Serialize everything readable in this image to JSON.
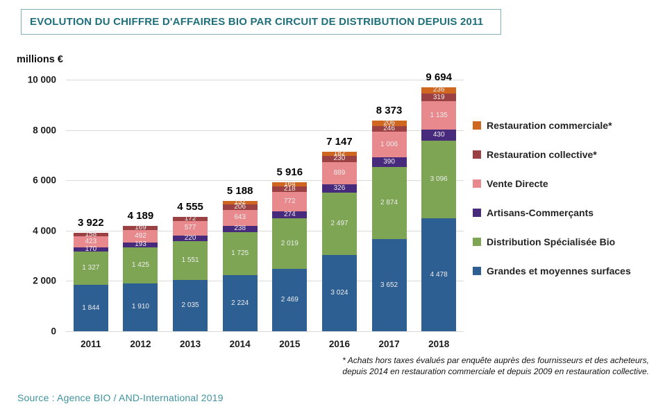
{
  "title": "EVOLUTION DU CHIFFRE D'AFFAIRES BIO PAR CIRCUIT DE DISTRIBUTION DEPUIS 2011",
  "y_axis": {
    "unit": "millions €",
    "ticks": [
      {
        "label": "0",
        "value": 0
      },
      {
        "label": "2 000",
        "value": 2000
      },
      {
        "label": "4 000",
        "value": 4000
      },
      {
        "label": "6 000",
        "value": 6000
      },
      {
        "label": "8 000",
        "value": 8000
      },
      {
        "label": "10 000",
        "value": 10000
      }
    ]
  },
  "chart_data": {
    "type": "bar",
    "stacked": true,
    "title": "EVOLUTION DU CHIFFRE D'AFFAIRES BIO PAR CIRCUIT DE DISTRIBUTION DEPUIS 2011",
    "ylabel": "millions €",
    "ylim": [
      0,
      10000
    ],
    "grid": true,
    "legend_position": "right",
    "categories": [
      "2011",
      "2012",
      "2013",
      "2014",
      "2015",
      "2016",
      "2017",
      "2018"
    ],
    "series": [
      {
        "name": "Grandes et moyennes surfaces",
        "color": "#2e5f92",
        "values": [
          1844,
          1910,
          2035,
          2224,
          2469,
          3024,
          3652,
          4478
        ]
      },
      {
        "name": "Distribution Spécialisée Bio",
        "color": "#7da554",
        "values": [
          1327,
          1425,
          1551,
          1725,
          2019,
          2497,
          2874,
          3096
        ]
      },
      {
        "name": "Artisans-Commerçants",
        "color": "#472a7c",
        "values": [
          170,
          193,
          220,
          238,
          274,
          326,
          390,
          430
        ]
      },
      {
        "name": "Vente Directe",
        "color": "#e8898d",
        "values": [
          423,
          492,
          577,
          643,
          772,
          889,
          1006,
          1135
        ]
      },
      {
        "name": "Restauration collective*",
        "color": "#9c4143",
        "values": [
          158,
          169,
          172,
          206,
          218,
          230,
          246,
          319
        ]
      },
      {
        "name": "Restauration commerciale*",
        "color": "#cf6721",
        "values": [
          null,
          null,
          null,
          152,
          164,
          182,
          206,
          236
        ]
      }
    ],
    "totals": {
      "labels": [
        "3 922",
        "4 189",
        "4 555",
        "5 188",
        "5 916",
        "7 147",
        "8 373",
        "9 694"
      ],
      "values": [
        3922,
        4189,
        4555,
        5188,
        5916,
        7147,
        8373,
        9694
      ]
    },
    "legend": [
      "Restauration commerciale*",
      "Restauration collective*",
      "Vente Directe",
      "Artisans-Commerçants",
      "Distribution Spécialisée Bio",
      "Grandes et moyennes surfaces"
    ]
  },
  "footnote": {
    "line1": "* Achats hors taxes évalués par enquête auprès des fournisseurs et des acheteurs,",
    "line2": "depuis 2014 en restauration commerciale et  depuis 2009 en restauration collective."
  },
  "source": "Source : Agence BIO / AND-International 2019"
}
